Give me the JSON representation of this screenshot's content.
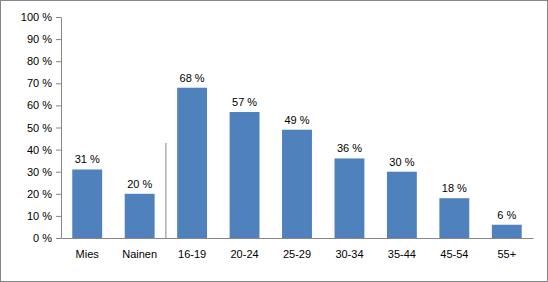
{
  "chart_data": {
    "type": "bar",
    "categories": [
      "Mies",
      "Nainen",
      "16-19",
      "20-24",
      "25-29",
      "30-34",
      "35-44",
      "45-54",
      "55+"
    ],
    "values": [
      31,
      20,
      68,
      57,
      49,
      36,
      30,
      18,
      6
    ],
    "value_labels": [
      "31 %",
      "20 %",
      "68 %",
      "57 %",
      "49 %",
      "36 %",
      "30 %",
      "18 %",
      "6 %"
    ],
    "color": "#4f81bd",
    "ylim": [
      0,
      100
    ],
    "yticks": [
      {
        "value": 0,
        "label": "0 %"
      },
      {
        "value": 10,
        "label": "10 %"
      },
      {
        "value": 20,
        "label": "20 %"
      },
      {
        "value": 30,
        "label": "30 %"
      },
      {
        "value": 40,
        "label": "40 %"
      },
      {
        "value": 50,
        "label": "50 %"
      },
      {
        "value": 60,
        "label": "60 %"
      },
      {
        "value": 70,
        "label": "70 %"
      },
      {
        "value": 80,
        "label": "80 %"
      },
      {
        "value": 90,
        "label": "90 %"
      },
      {
        "value": 100,
        "label": "100 %"
      }
    ],
    "grid": false,
    "data_labels": true
  }
}
